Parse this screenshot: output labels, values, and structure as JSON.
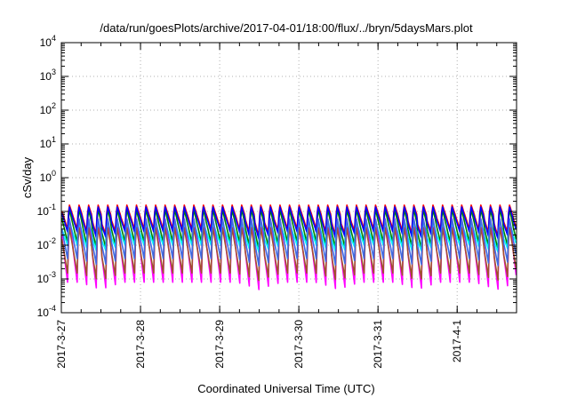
{
  "chart_data": {
    "type": "line",
    "title": "/data/run/goesPlots/archive/2017-04-01/18:00/flux/../bryn/5daysMars.plot",
    "xlabel": "Coordinated Universal Time (UTC)",
    "ylabel": "cSv/day",
    "y_scale": "log",
    "ylim": [
      0.0001,
      10000
    ],
    "y_ticks": [
      {
        "base": "10",
        "exp": "-4"
      },
      {
        "base": "10",
        "exp": "-3"
      },
      {
        "base": "10",
        "exp": "-2"
      },
      {
        "base": "10",
        "exp": "-1"
      },
      {
        "base": "10",
        "exp": "0"
      },
      {
        "base": "10",
        "exp": "1"
      },
      {
        "base": "10",
        "exp": "2"
      },
      {
        "base": "10",
        "exp": "3"
      },
      {
        "base": "10",
        "exp": "4"
      }
    ],
    "x_range": [
      "2017-03-27 00:00",
      "2017-04-01 18:00"
    ],
    "x_tick_labels": [
      "2017-3-27",
      "2017-3-28",
      "2017-3-29",
      "2017-3-30",
      "2017-3-31",
      "2017-4-1"
    ],
    "x_tick_dates": [
      "2017-03-27",
      "2017-03-28",
      "2017-03-29",
      "2017-03-30",
      "2017-03-31",
      "2017-04-01"
    ],
    "grid": true,
    "legend": "none",
    "pattern": {
      "description": "sawtooth",
      "cycle_hours": 2.9,
      "peak_value": 0.15,
      "trough_dip_days": [
        "2017-03-27",
        "2017-03-29",
        "2017-03-30",
        "2017-03-31",
        "2017-04-01"
      ]
    },
    "series": [
      {
        "color": "#ff0000",
        "peak": 0.17,
        "trough": 0.03
      },
      {
        "color": "#008000",
        "peak": 0.13,
        "trough": 0.012
      },
      {
        "color": "#0000ff",
        "peak": 0.15,
        "trough": 0.025
      },
      {
        "color": "#ff00ff",
        "peak": 0.08,
        "trough": 0.0008
      },
      {
        "color": "#00ffff",
        "peak": 0.05,
        "trough": 0.01
      },
      {
        "color": "#a0522d",
        "peak": 0.04,
        "trough": 0.0015
      },
      {
        "color": "#4169e1",
        "peak": 0.07,
        "trough": 0.004
      }
    ]
  }
}
